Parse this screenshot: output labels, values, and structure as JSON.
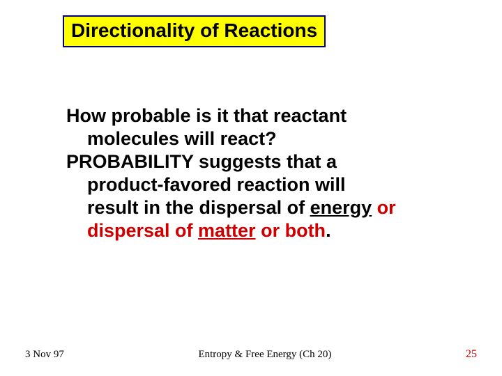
{
  "title": "Directionality of Reactions",
  "body": {
    "q_line1": "How probable is it that reactant",
    "q_line2": "molecules will react?",
    "p_line1": "PROBABILITY suggests that a",
    "p_line2": "product-favored reaction will",
    "p_line3_a": "result in the dispersal of ",
    "p_line3_energy": "energy",
    "p_line3_or": " or",
    "p_line4_a": "dispersal of ",
    "p_line4_matter": "matter",
    "p_line4_b": " or both",
    "p_line4_dot": "."
  },
  "footer": {
    "date": "3 Nov 97",
    "center": "Entropy & Free Energy (Ch 20)",
    "page": "25"
  },
  "colors": {
    "title_bg": "#ffff00",
    "title_border": "#000080",
    "accent_red": "#cc0000",
    "text": "#000000",
    "page_bg": "#ffffff"
  }
}
